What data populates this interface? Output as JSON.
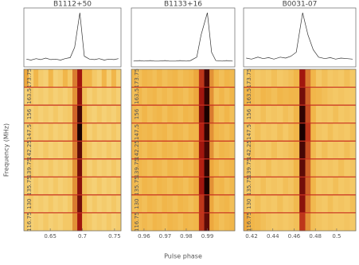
{
  "chart_data": [
    {
      "type": "heatmap",
      "title": "B1112+50",
      "ylabel": "Frequency (MHz)",
      "categories": [
        "173.75",
        "163.5",
        "156",
        "147.5",
        "142.25",
        "139.75",
        "135.75",
        "130",
        "116.75"
      ],
      "x": [
        0.613,
        0.62,
        0.628,
        0.635,
        0.643,
        0.651,
        0.658,
        0.666,
        0.673,
        0.681,
        0.688,
        0.696,
        0.703,
        0.711,
        0.719,
        0.726,
        0.734,
        0.741,
        0.749,
        0.756
      ],
      "profile": [
        0.06,
        0.04,
        0.07,
        0.05,
        0.08,
        0.05,
        0.06,
        0.04,
        0.07,
        0.09,
        0.3,
        1.0,
        0.12,
        0.06,
        0.05,
        0.07,
        0.04,
        0.06,
        0.05,
        0.07
      ],
      "z": [
        [
          0.35,
          0.15,
          0.3,
          0.18,
          0.15,
          0.3,
          0.15,
          0.18,
          0.3,
          0.2,
          0.45,
          0.7,
          0.3,
          0.3,
          0.2,
          0.15,
          0.3,
          0.15,
          0.3,
          0.15
        ],
        [
          0.15,
          0.2,
          0.15,
          0.18,
          0.15,
          0.2,
          0.15,
          0.18,
          0.15,
          0.2,
          0.4,
          0.75,
          0.25,
          0.15,
          0.2,
          0.15,
          0.18,
          0.15,
          0.2,
          0.15
        ],
        [
          0.18,
          0.15,
          0.2,
          0.15,
          0.18,
          0.15,
          0.2,
          0.15,
          0.18,
          0.2,
          0.5,
          0.9,
          0.3,
          0.18,
          0.15,
          0.2,
          0.15,
          0.18,
          0.15,
          0.2
        ],
        [
          0.15,
          0.2,
          0.15,
          0.18,
          0.15,
          0.2,
          0.15,
          0.18,
          0.15,
          0.2,
          0.5,
          1.0,
          0.3,
          0.15,
          0.2,
          0.15,
          0.18,
          0.15,
          0.2,
          0.15
        ],
        [
          0.2,
          0.15,
          0.18,
          0.15,
          0.2,
          0.15,
          0.18,
          0.15,
          0.2,
          0.2,
          0.45,
          0.85,
          0.28,
          0.2,
          0.15,
          0.18,
          0.15,
          0.2,
          0.15,
          0.18
        ],
        [
          0.15,
          0.2,
          0.15,
          0.18,
          0.15,
          0.2,
          0.15,
          0.18,
          0.15,
          0.2,
          0.4,
          0.8,
          0.25,
          0.15,
          0.2,
          0.15,
          0.18,
          0.15,
          0.2,
          0.15
        ],
        [
          0.18,
          0.15,
          0.2,
          0.15,
          0.18,
          0.15,
          0.2,
          0.15,
          0.18,
          0.2,
          0.4,
          0.75,
          0.25,
          0.18,
          0.15,
          0.2,
          0.15,
          0.18,
          0.15,
          0.2
        ],
        [
          0.15,
          0.2,
          0.15,
          0.18,
          0.15,
          0.2,
          0.15,
          0.18,
          0.15,
          0.2,
          0.45,
          0.8,
          0.3,
          0.15,
          0.2,
          0.15,
          0.18,
          0.15,
          0.2,
          0.15
        ],
        [
          0.2,
          0.15,
          0.18,
          0.15,
          0.2,
          0.15,
          0.18,
          0.15,
          0.2,
          0.2,
          0.4,
          0.7,
          0.25,
          0.2,
          0.15,
          0.18,
          0.15,
          0.2,
          0.15,
          0.18
        ]
      ],
      "xlim": [
        0.609,
        0.76
      ],
      "xticks": [
        0.65,
        0.7,
        0.75
      ],
      "colormap": [
        "#f9eba0",
        "#f0b040",
        "#b01810",
        "#1a0000"
      ]
    },
    {
      "type": "heatmap",
      "title": "B1133+16",
      "xlabel": "Pulse phase",
      "categories": [
        "173.75",
        "163.5",
        "156",
        "147.5",
        "142.25",
        "139.75",
        "135.75",
        "130",
        "116.75"
      ],
      "x": [
        0.955,
        0.958,
        0.96,
        0.963,
        0.965,
        0.967,
        0.97,
        0.972,
        0.975,
        0.977,
        0.98,
        0.982,
        0.985,
        0.987,
        0.99,
        0.992,
        0.994,
        0.997,
        0.999,
        1.002
      ],
      "profile": [
        0.02,
        0.03,
        0.02,
        0.03,
        0.02,
        0.02,
        0.03,
        0.02,
        0.02,
        0.03,
        0.02,
        0.03,
        0.1,
        0.55,
        1.0,
        0.2,
        0.03,
        0.02,
        0.03,
        0.02
      ],
      "z": [
        [
          0.3,
          0.25,
          0.3,
          0.28,
          0.25,
          0.3,
          0.25,
          0.28,
          0.3,
          0.25,
          0.28,
          0.3,
          0.35,
          0.6,
          0.9,
          0.4,
          0.3,
          0.25,
          0.3,
          0.28
        ],
        [
          0.25,
          0.3,
          0.25,
          0.28,
          0.3,
          0.25,
          0.28,
          0.25,
          0.3,
          0.28,
          0.25,
          0.3,
          0.35,
          0.7,
          0.95,
          0.4,
          0.25,
          0.3,
          0.25,
          0.3
        ],
        [
          0.28,
          0.25,
          0.3,
          0.25,
          0.28,
          0.3,
          0.25,
          0.3,
          0.28,
          0.25,
          0.3,
          0.28,
          0.35,
          0.75,
          1.0,
          0.45,
          0.28,
          0.25,
          0.3,
          0.25
        ],
        [
          0.25,
          0.3,
          0.28,
          0.3,
          0.25,
          0.28,
          0.3,
          0.25,
          0.3,
          0.28,
          0.25,
          0.3,
          0.3,
          0.65,
          0.95,
          0.4,
          0.3,
          0.28,
          0.25,
          0.3
        ],
        [
          0.3,
          0.28,
          0.25,
          0.3,
          0.28,
          0.25,
          0.3,
          0.28,
          0.25,
          0.3,
          0.28,
          0.25,
          0.35,
          0.7,
          0.9,
          0.4,
          0.25,
          0.3,
          0.28,
          0.25
        ],
        [
          0.25,
          0.3,
          0.28,
          0.25,
          0.3,
          0.28,
          0.25,
          0.3,
          0.28,
          0.25,
          0.3,
          0.28,
          0.35,
          0.65,
          0.95,
          0.35,
          0.3,
          0.25,
          0.28,
          0.3
        ],
        [
          0.28,
          0.25,
          0.3,
          0.28,
          0.25,
          0.3,
          0.28,
          0.25,
          0.3,
          0.28,
          0.25,
          0.3,
          0.35,
          0.7,
          1.0,
          0.4,
          0.28,
          0.3,
          0.25,
          0.28
        ],
        [
          0.25,
          0.28,
          0.25,
          0.3,
          0.28,
          0.25,
          0.3,
          0.28,
          0.25,
          0.3,
          0.28,
          0.25,
          0.3,
          0.6,
          0.9,
          0.35,
          0.25,
          0.28,
          0.3,
          0.25
        ],
        [
          0.3,
          0.25,
          0.28,
          0.25,
          0.3,
          0.28,
          0.25,
          0.3,
          0.28,
          0.25,
          0.3,
          0.28,
          0.3,
          0.6,
          0.85,
          0.35,
          0.3,
          0.25,
          0.28,
          0.3
        ]
      ],
      "xlim": [
        0.954,
        1.003
      ],
      "xticks": [
        0.96,
        0.97,
        0.98,
        0.99
      ],
      "colormap": [
        "#f9eba0",
        "#f0b040",
        "#b01810",
        "#1a0000"
      ]
    },
    {
      "type": "heatmap",
      "title": "B0031-07",
      "categories": [
        "173.75",
        "163.5",
        "156",
        "147.5",
        "142.25",
        "139.75",
        "135.75",
        "130",
        "116.75"
      ],
      "x": [
        0.415,
        0.42,
        0.426,
        0.431,
        0.436,
        0.441,
        0.447,
        0.452,
        0.457,
        0.462,
        0.468,
        0.473,
        0.478,
        0.483,
        0.489,
        0.494,
        0.499,
        0.504,
        0.51,
        0.515
      ],
      "profile": [
        0.08,
        0.06,
        0.1,
        0.07,
        0.09,
        0.06,
        0.1,
        0.08,
        0.12,
        0.2,
        1.0,
        0.55,
        0.25,
        0.1,
        0.07,
        0.09,
        0.06,
        0.08,
        0.07,
        0.06
      ],
      "z": [
        [
          0.2,
          0.25,
          0.2,
          0.22,
          0.2,
          0.25,
          0.2,
          0.22,
          0.25,
          0.3,
          0.7,
          0.45,
          0.3,
          0.2,
          0.25,
          0.2,
          0.22,
          0.2,
          0.25,
          0.2
        ],
        [
          0.3,
          0.28,
          0.25,
          0.3,
          0.28,
          0.25,
          0.3,
          0.28,
          0.3,
          0.3,
          0.8,
          0.5,
          0.3,
          0.28,
          0.25,
          0.22,
          0.2,
          0.22,
          0.2,
          0.2
        ],
        [
          0.2,
          0.22,
          0.2,
          0.25,
          0.2,
          0.22,
          0.2,
          0.25,
          0.22,
          0.3,
          0.95,
          0.55,
          0.3,
          0.2,
          0.22,
          0.2,
          0.25,
          0.2,
          0.22,
          0.2
        ],
        [
          0.22,
          0.2,
          0.25,
          0.2,
          0.22,
          0.2,
          0.25,
          0.2,
          0.25,
          0.3,
          1.0,
          0.6,
          0.3,
          0.22,
          0.2,
          0.25,
          0.2,
          0.22,
          0.2,
          0.25
        ],
        [
          0.2,
          0.25,
          0.2,
          0.22,
          0.2,
          0.25,
          0.2,
          0.22,
          0.25,
          0.3,
          0.9,
          0.55,
          0.28,
          0.2,
          0.25,
          0.2,
          0.22,
          0.2,
          0.25,
          0.2
        ],
        [
          0.22,
          0.2,
          0.22,
          0.2,
          0.25,
          0.2,
          0.22,
          0.2,
          0.22,
          0.3,
          0.85,
          0.5,
          0.28,
          0.22,
          0.2,
          0.22,
          0.2,
          0.25,
          0.2,
          0.22
        ],
        [
          0.2,
          0.22,
          0.2,
          0.25,
          0.2,
          0.22,
          0.2,
          0.25,
          0.22,
          0.28,
          0.8,
          0.5,
          0.3,
          0.2,
          0.22,
          0.2,
          0.25,
          0.2,
          0.22,
          0.2
        ],
        [
          0.22,
          0.2,
          0.25,
          0.2,
          0.22,
          0.2,
          0.25,
          0.2,
          0.22,
          0.28,
          0.75,
          0.45,
          0.28,
          0.22,
          0.2,
          0.25,
          0.2,
          0.22,
          0.2,
          0.25
        ],
        [
          0.35,
          0.3,
          0.28,
          0.25,
          0.22,
          0.2,
          0.22,
          0.2,
          0.22,
          0.25,
          0.6,
          0.4,
          0.25,
          0.22,
          0.2,
          0.22,
          0.2,
          0.2,
          0.22,
          0.2
        ]
      ],
      "xlim": [
        0.4125,
        0.518
      ],
      "xticks": [
        0.42,
        0.44,
        0.46,
        0.48,
        0.5
      ],
      "colormap": [
        "#f9eba0",
        "#f0b040",
        "#b01810",
        "#1a0000"
      ]
    }
  ]
}
